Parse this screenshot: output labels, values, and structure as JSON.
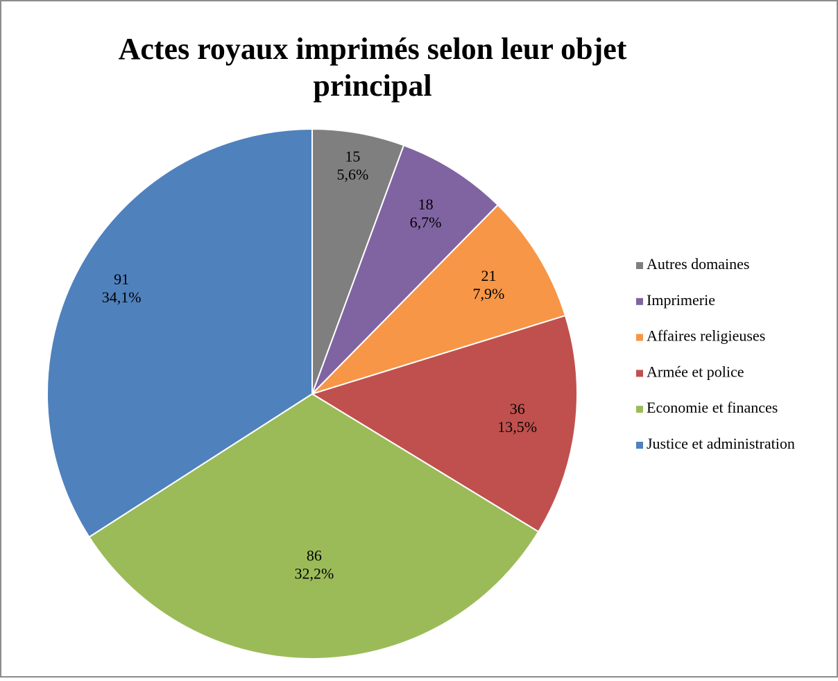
{
  "chart_data": {
    "type": "pie",
    "title": "Actes royaux imprimés selon leur objet principal",
    "categories": [
      "Autres domaines",
      "Imprimerie",
      "Affaires religieuses",
      "Armée et police",
      "Economie et finances",
      "Justice et administration"
    ],
    "values": [
      15,
      18,
      21,
      36,
      86,
      91
    ],
    "percent_labels": [
      "5,6%",
      "6,7%",
      "7,9%",
      "13,5%",
      "32,2%",
      "34,1%"
    ],
    "colors": [
      "#7f7f7f",
      "#8064a2",
      "#f79646",
      "#c0504d",
      "#9bbb59",
      "#4f81bd"
    ],
    "legend": "right"
  }
}
